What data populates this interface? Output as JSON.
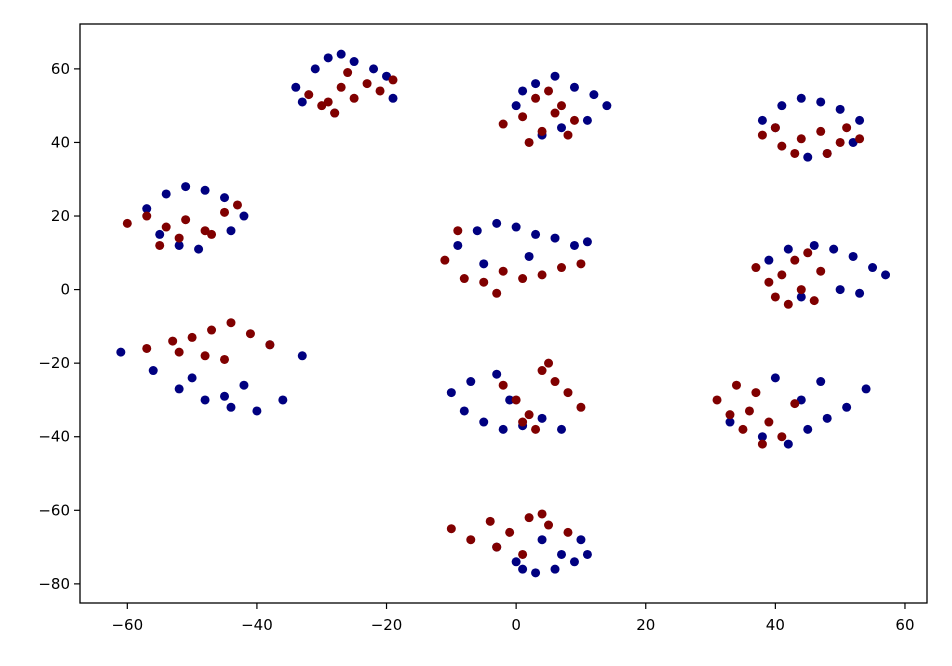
{
  "chart_data": {
    "type": "scatter",
    "xlim": [
      -67.3,
      63.4
    ],
    "ylim": [
      -85.2,
      72.2
    ],
    "xticks": [
      {
        "value": -60,
        "label": "−60"
      },
      {
        "value": -40,
        "label": "−40"
      },
      {
        "value": -20,
        "label": "−20"
      },
      0,
      20,
      40,
      60
    ],
    "yticks": [
      {
        "value": -80,
        "label": "−80"
      },
      {
        "value": -60,
        "label": "−60"
      },
      {
        "value": -40,
        "label": "−40"
      },
      {
        "value": -20,
        "label": "−20"
      },
      0,
      20,
      40,
      60
    ],
    "grid": false,
    "series": [
      {
        "color": "#000080",
        "x": [
          -34,
          -31,
          -29,
          -27,
          -25,
          -22,
          -20,
          -33,
          -28,
          -19,
          0,
          3,
          6,
          9,
          12,
          14,
          11,
          4,
          7,
          1,
          38,
          41,
          44,
          47,
          50,
          53,
          52,
          45,
          40,
          48,
          -57,
          -54,
          -51,
          -48,
          -45,
          -42,
          -44,
          -52,
          -55,
          -49,
          -9,
          -6,
          -3,
          0,
          3,
          6,
          9,
          11,
          -5,
          2,
          39,
          42,
          46,
          49,
          52,
          55,
          57,
          50,
          44,
          53,
          -61,
          -56,
          -52,
          -48,
          -44,
          -40,
          -36,
          -33,
          -50,
          -42,
          -38,
          -45,
          -10,
          -8,
          -5,
          -2,
          1,
          4,
          7,
          -7,
          -3,
          -1,
          33,
          38,
          42,
          45,
          48,
          51,
          54,
          40,
          47,
          44,
          -3,
          0,
          3,
          6,
          9,
          11,
          4,
          7,
          1,
          10
        ],
        "y": [
          55,
          60,
          63,
          64,
          62,
          60,
          58,
          51,
          48,
          52,
          50,
          56,
          58,
          55,
          53,
          50,
          46,
          42,
          44,
          54,
          46,
          50,
          52,
          51,
          49,
          46,
          40,
          36,
          44,
          37,
          22,
          26,
          28,
          27,
          25,
          20,
          16,
          12,
          15,
          11,
          12,
          16,
          18,
          17,
          15,
          14,
          12,
          13,
          7,
          9,
          8,
          11,
          12,
          11,
          9,
          6,
          4,
          0,
          -2,
          -1,
          -17,
          -22,
          -27,
          -30,
          -32,
          -33,
          -30,
          -18,
          -24,
          -26,
          -15,
          -29,
          -28,
          -33,
          -36,
          -38,
          -37,
          -35,
          -38,
          -25,
          -23,
          -30,
          -36,
          -40,
          -42,
          -38,
          -35,
          -32,
          -27,
          -24,
          -25,
          -30,
          -70,
          -74,
          -77,
          -76,
          -74,
          -72,
          -68,
          -72,
          -76,
          -68
        ]
      },
      {
        "color": "#800000",
        "x": [
          -32,
          -29,
          -27,
          -25,
          -23,
          -21,
          -19,
          -28,
          -26,
          -30,
          -2,
          1,
          3,
          5,
          7,
          9,
          4,
          2,
          6,
          8,
          38,
          41,
          44,
          47,
          50,
          53,
          43,
          48,
          40,
          51,
          -60,
          -57,
          -54,
          -51,
          -48,
          -45,
          -43,
          -52,
          -55,
          -47,
          -11,
          -8,
          -5,
          -2,
          1,
          4,
          7,
          10,
          -9,
          -3,
          37,
          39,
          41,
          43,
          45,
          47,
          40,
          42,
          44,
          46,
          -57,
          -53,
          -50,
          -47,
          -44,
          -41,
          -38,
          -48,
          -45,
          -52,
          -2,
          0,
          2,
          4,
          6,
          8,
          10,
          3,
          5,
          1,
          31,
          33,
          35,
          37,
          39,
          41,
          43,
          34,
          38,
          36,
          -10,
          -7,
          -4,
          -1,
          2,
          5,
          8,
          -3,
          1,
          4
        ],
        "y": [
          53,
          51,
          55,
          52,
          56,
          54,
          57,
          48,
          59,
          50,
          45,
          47,
          52,
          54,
          50,
          46,
          43,
          40,
          48,
          42,
          42,
          39,
          41,
          43,
          40,
          41,
          37,
          37,
          44,
          44,
          18,
          20,
          17,
          19,
          16,
          21,
          23,
          14,
          12,
          15,
          8,
          3,
          2,
          5,
          3,
          4,
          6,
          7,
          16,
          -1,
          6,
          2,
          4,
          8,
          10,
          5,
          -2,
          -4,
          0,
          -3,
          -16,
          -14,
          -13,
          -11,
          -9,
          -12,
          -15,
          -18,
          -19,
          -17,
          -26,
          -30,
          -34,
          -22,
          -25,
          -28,
          -32,
          -38,
          -20,
          -36,
          -30,
          -34,
          -38,
          -28,
          -36,
          -40,
          -31,
          -26,
          -42,
          -33,
          -65,
          -68,
          -63,
          -66,
          -62,
          -64,
          -66,
          -70,
          -72,
          -61
        ]
      }
    ]
  }
}
